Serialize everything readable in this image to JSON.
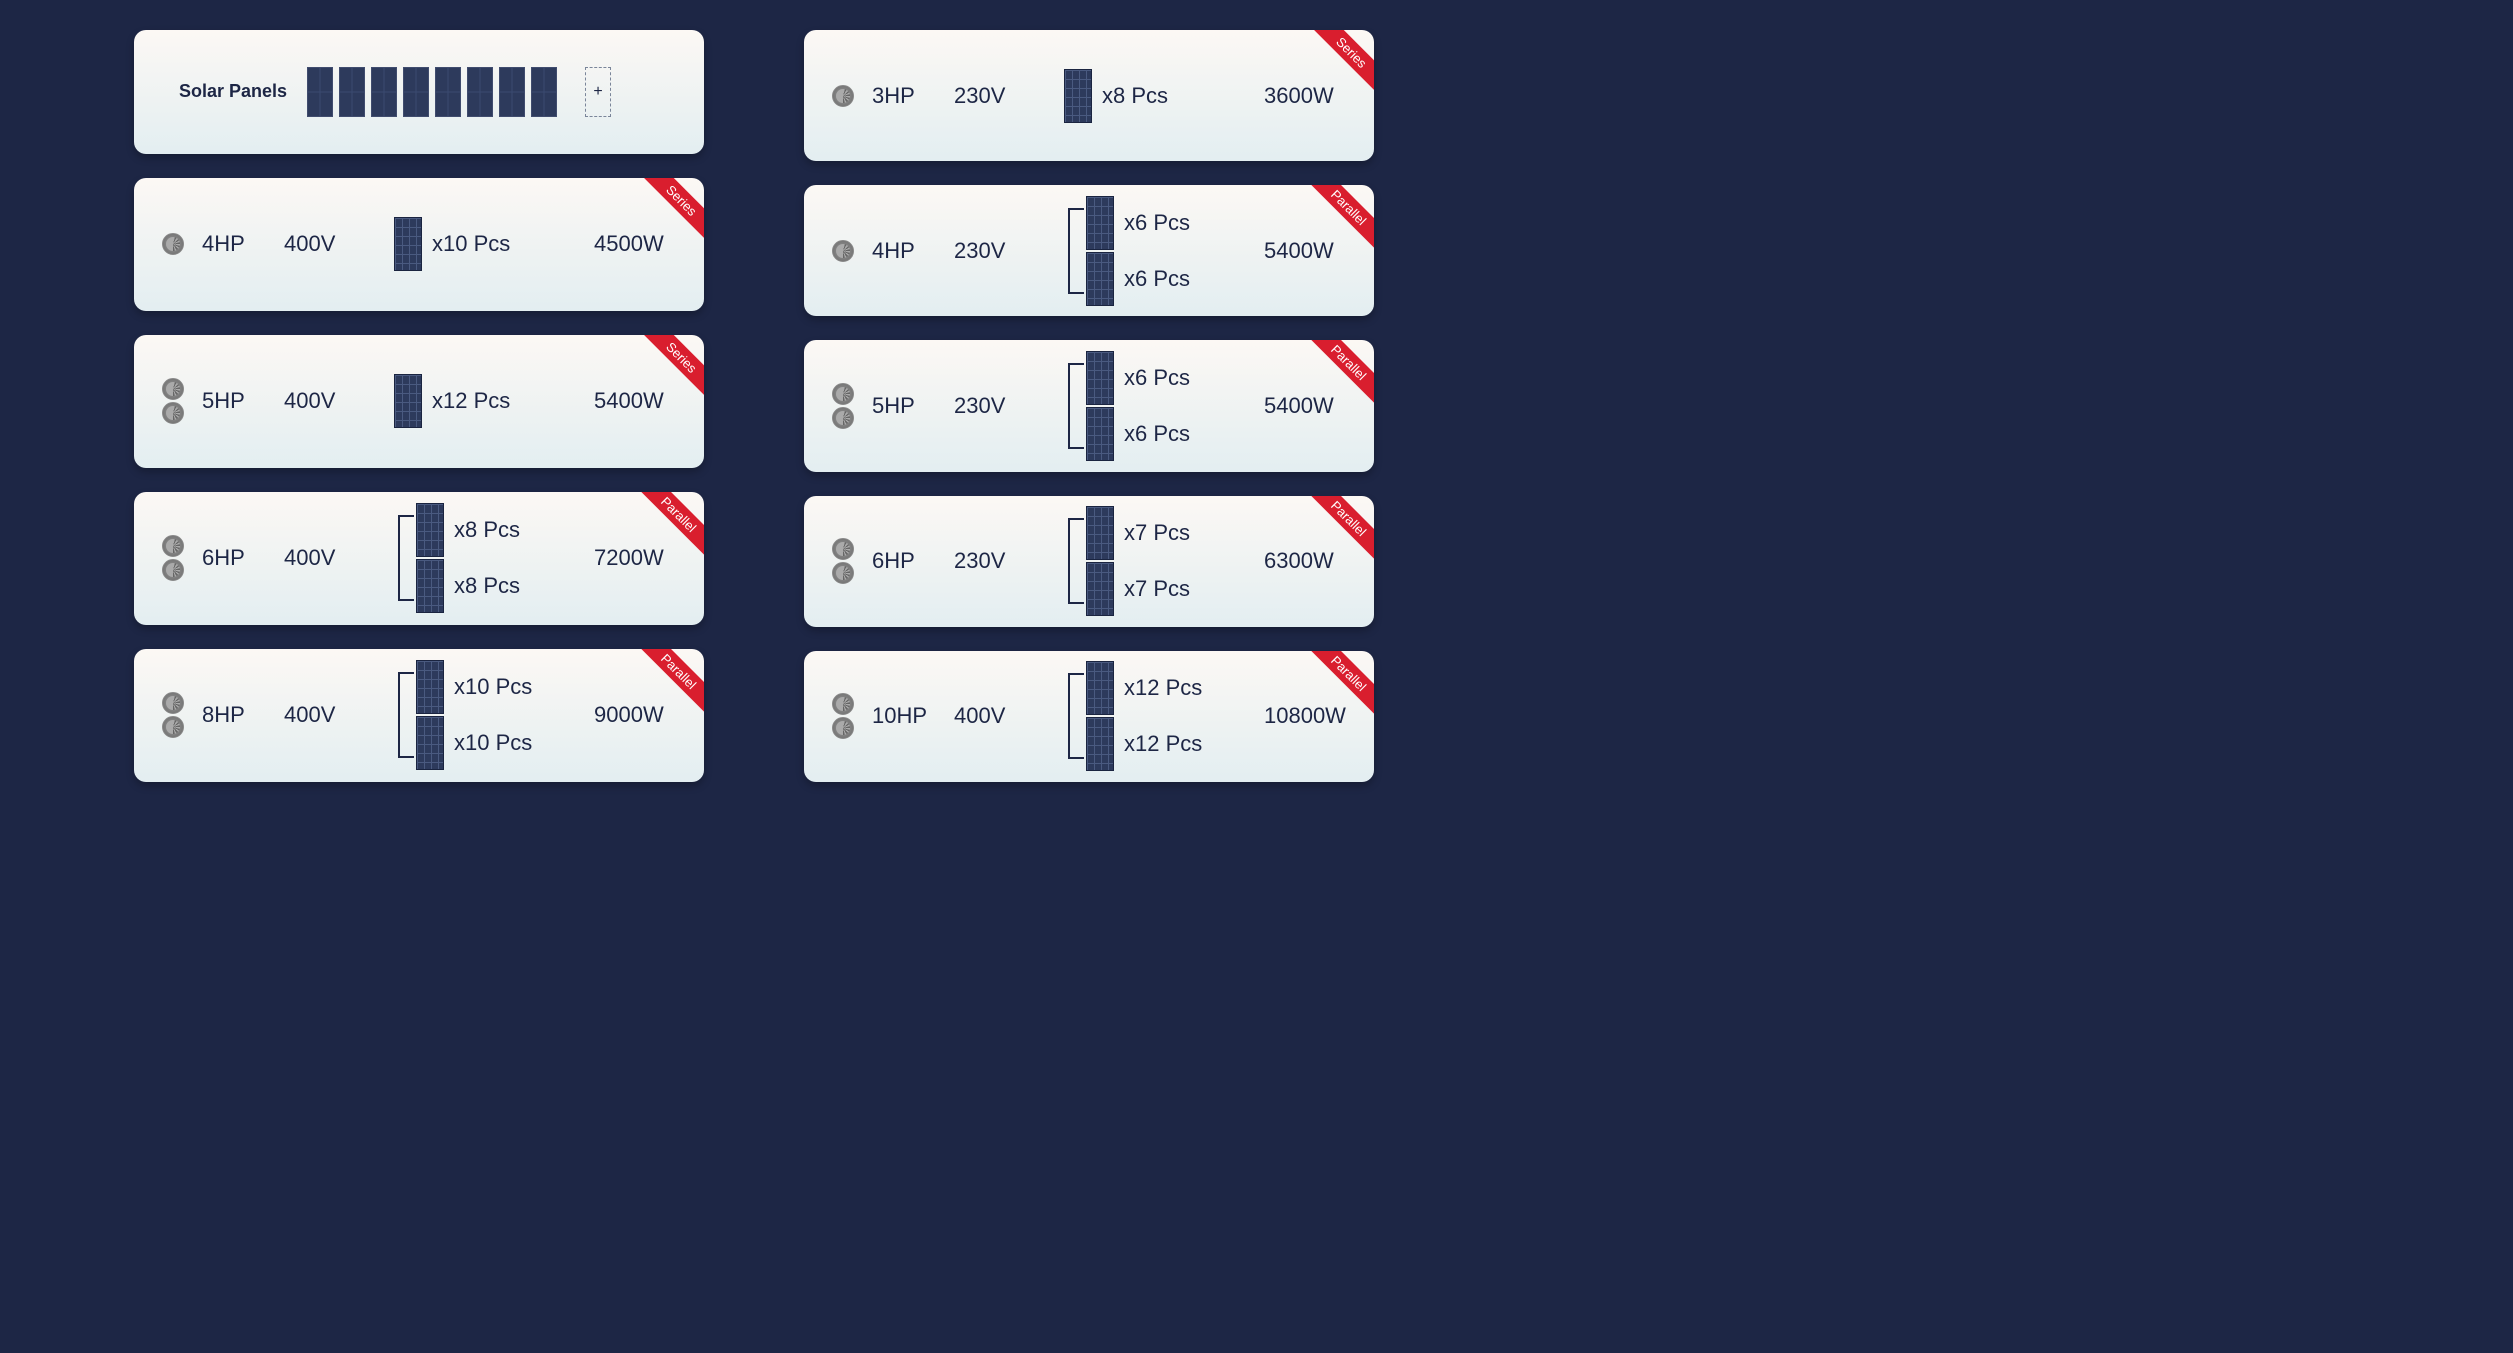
{
  "colors": {
    "background": "#1d2645",
    "card_gradient_top": "#fcf8f4",
    "card_gradient_bottom": "#e3eef1",
    "text": "#1d2645",
    "ribbon_bg": "#d91e2e",
    "ribbon_text": "#ffffff",
    "panel_fill": "#2d3a5c"
  },
  "header": {
    "label": "Solar Panels",
    "preview_panel_count": 8,
    "add_symbol": "+"
  },
  "ribbon_labels": {
    "series": "Series",
    "parallel": "Parallel"
  },
  "columns": {
    "left": [
      {
        "fans": 1,
        "hp": "4HP",
        "voltage": "400V",
        "wiring": "series",
        "strings": [
          "x10 Pcs"
        ],
        "watts": "4500W"
      },
      {
        "fans": 2,
        "hp": "5HP",
        "voltage": "400V",
        "wiring": "series",
        "strings": [
          "x12 Pcs"
        ],
        "watts": "5400W"
      },
      {
        "fans": 2,
        "hp": "6HP",
        "voltage": "400V",
        "wiring": "parallel",
        "strings": [
          "x8 Pcs",
          "x8 Pcs"
        ],
        "watts": "7200W"
      },
      {
        "fans": 2,
        "hp": "8HP",
        "voltage": "400V",
        "wiring": "parallel",
        "strings": [
          "x10 Pcs",
          "x10 Pcs"
        ],
        "watts": "9000W"
      }
    ],
    "right": [
      {
        "fans": 1,
        "hp": "3HP",
        "voltage": "230V",
        "wiring": "series",
        "strings": [
          "x8 Pcs"
        ],
        "watts": "3600W"
      },
      {
        "fans": 1,
        "hp": "4HP",
        "voltage": "230V",
        "wiring": "parallel",
        "strings": [
          "x6 Pcs",
          "x6 Pcs"
        ],
        "watts": "5400W"
      },
      {
        "fans": 2,
        "hp": "5HP",
        "voltage": "230V",
        "wiring": "parallel",
        "strings": [
          "x6 Pcs",
          "x6 Pcs"
        ],
        "watts": "5400W"
      },
      {
        "fans": 2,
        "hp": "6HP",
        "voltage": "230V",
        "wiring": "parallel",
        "strings": [
          "x7 Pcs",
          "x7 Pcs"
        ],
        "watts": "6300W"
      },
      {
        "fans": 2,
        "hp": "10HP",
        "voltage": "400V",
        "wiring": "parallel",
        "strings": [
          "x12 Pcs",
          "x12 Pcs"
        ],
        "watts": "10800W"
      }
    ]
  }
}
